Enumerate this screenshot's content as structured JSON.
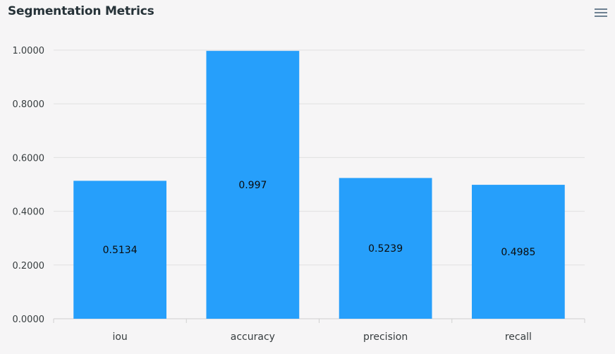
{
  "title": "Segmentation Metrics",
  "menu_icon": "hamburger-menu-icon",
  "colors": {
    "bar": "#269ffb",
    "grid": "#e0e0e0",
    "background": "#f6f5f6"
  },
  "chart_data": {
    "type": "bar",
    "title": "Segmentation Metrics",
    "categories": [
      "iou",
      "accuracy",
      "precision",
      "recall"
    ],
    "values": [
      0.5134,
      0.997,
      0.5239,
      0.4985
    ],
    "data_labels": [
      "0.5134",
      "0.997",
      "0.5239",
      "0.4985"
    ],
    "ylim": [
      0,
      1
    ],
    "y_ticks": [
      "0.0000",
      "0.2000",
      "0.4000",
      "0.6000",
      "0.8000",
      "1.0000"
    ],
    "xlabel": "",
    "ylabel": "",
    "grid": true,
    "legend": false
  }
}
